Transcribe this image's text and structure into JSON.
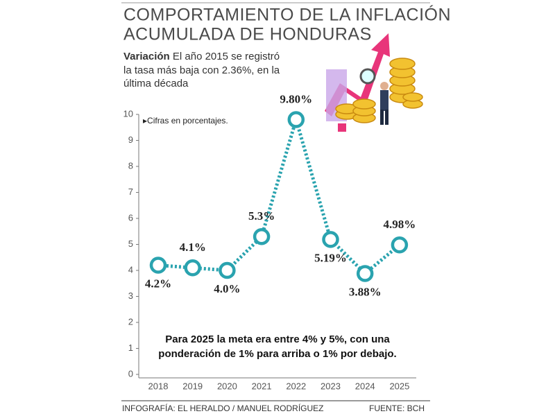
{
  "chart_data": {
    "type": "line",
    "title": [
      "COMPORTAMIENTO DE LA INFLACIÓN",
      "ACUMULADA DE HONDURAS"
    ],
    "subtitle_lead": "Variación",
    "subtitle": [
      "El año 2015 se registró",
      "la tasa más baja con 2.36%, en la",
      "última década"
    ],
    "note": "▸Cifras en porcentajes.",
    "annotation": [
      "Para 2025 la meta era entre 4% y 5%, con una",
      "ponderación de 1% para arriba o 1% por debajo."
    ],
    "credit": "INFOGRAFÍA: EL HERALDO / MANUEL RODRÍGUEZ",
    "source": "FUENTE: BCH",
    "categories": [
      "2018",
      "2019",
      "2020",
      "2021",
      "2022",
      "2023",
      "2024",
      "2025"
    ],
    "values": [
      4.2,
      4.1,
      4.0,
      5.3,
      9.8,
      5.19,
      3.88,
      4.98
    ],
    "value_labels": [
      "4.2%",
      "4.1%",
      "4.0%",
      "5.3%",
      "9.80%",
      "5.19%",
      "3.88%",
      "4.98%"
    ],
    "color": "#2aa3af",
    "ylim": [
      0,
      10
    ],
    "yticks": [
      0,
      1,
      2,
      3,
      4,
      5,
      6,
      7,
      8,
      9,
      10
    ]
  }
}
